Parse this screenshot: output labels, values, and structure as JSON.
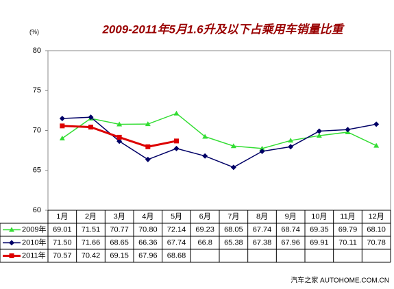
{
  "chart_data": {
    "type": "line",
    "title": "2009-2011年5月1.6升及以下占乘用车销量比重",
    "y_label": "(%)",
    "source": "汽车之家  AUTOHOME.COM.CN",
    "categories": [
      "1月",
      "2月",
      "3月",
      "4月",
      "5月",
      "6月",
      "7月",
      "8月",
      "9月",
      "10月",
      "11月",
      "12月"
    ],
    "series": [
      {
        "name": "2009年",
        "color": "#33dd33",
        "marker": "triangle",
        "values": [
          69.01,
          71.51,
          70.77,
          70.8,
          72.14,
          69.23,
          68.05,
          67.74,
          68.74,
          69.35,
          69.79,
          68.1
        ],
        "value_labels": [
          "69.01",
          "71.51",
          "70.77",
          "70.80",
          "72.14",
          "69.23",
          "68.05",
          "67.74",
          "68.74",
          "69.35",
          "69.79",
          "68.10"
        ]
      },
      {
        "name": "2010年",
        "color": "#000066",
        "marker": "diamond",
        "values": [
          71.5,
          71.66,
          68.65,
          66.36,
          67.74,
          66.8,
          65.38,
          67.38,
          67.96,
          69.91,
          70.11,
          70.78
        ],
        "value_labels": [
          "71.50",
          "71.66",
          "68.65",
          "66.36",
          "67.74",
          "66.8",
          "65.38",
          "67.38",
          "67.96",
          "69.91",
          "70.11",
          "70.78"
        ]
      },
      {
        "name": "2011年",
        "color": "#dd0000",
        "marker": "square",
        "values": [
          70.57,
          70.42,
          69.15,
          67.96,
          68.68,
          null,
          null,
          null,
          null,
          null,
          null,
          null
        ],
        "value_labels": [
          "70.57",
          "70.42",
          "69.15",
          "67.96",
          "68.68",
          null,
          null,
          null,
          null,
          null,
          null,
          null
        ]
      }
    ],
    "ylim": [
      60,
      80
    ],
    "yticks": [
      60,
      65,
      70,
      75,
      80
    ],
    "grid": false
  }
}
